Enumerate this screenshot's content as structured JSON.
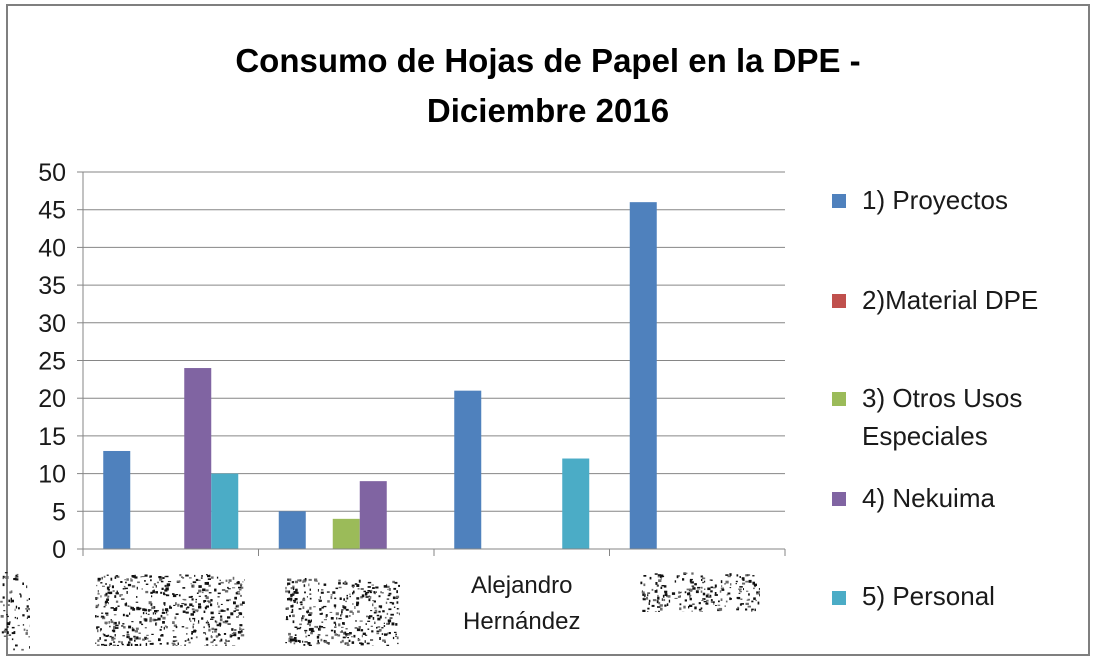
{
  "chart_data": {
    "type": "bar",
    "title": "Consumo de Hojas de Papel en la DPE - Diciembre 2016",
    "title_lines": [
      "Consumo de Hojas de Papel en la DPE -",
      "Diciembre 2016"
    ],
    "categories": [
      "",
      "",
      "Alejandro Hernández",
      ""
    ],
    "category_lines": [
      [],
      [],
      [
        "Alejandro",
        "Hernández"
      ],
      []
    ],
    "series": [
      {
        "name": "1) Proyectos",
        "color": "#4f81bd",
        "values": [
          13,
          5,
          21,
          46
        ]
      },
      {
        "name": "2)Material DPE",
        "color": "#c0504d",
        "values": [
          0,
          0,
          0,
          0
        ]
      },
      {
        "name": "3) Otros Usos Especiales",
        "color": "#9bbb59",
        "values": [
          0,
          4,
          0,
          0
        ]
      },
      {
        "name": "4) Nekuima",
        "color": "#8064a2",
        "values": [
          24,
          9,
          0,
          0
        ]
      },
      {
        "name": "5) Personal",
        "color": "#4bacc6",
        "values": [
          10,
          0,
          12,
          0
        ]
      }
    ],
    "ylim": [
      0,
      50
    ],
    "yticks": [
      0,
      5,
      10,
      15,
      20,
      25,
      30,
      35,
      40,
      45,
      50
    ],
    "grid": true,
    "legend_position": "right",
    "xlabel": "",
    "ylabel": ""
  },
  "legend": {
    "items": [
      {
        "lines": [
          "1) Proyectos"
        ]
      },
      {
        "lines": [
          "2)Material DPE"
        ]
      },
      {
        "lines": [
          "3) Otros Usos",
          "Especiales"
        ]
      },
      {
        "lines": [
          "4) Nekuima"
        ]
      },
      {
        "lines": [
          "5) Personal"
        ]
      }
    ]
  },
  "colors": {
    "gridline": "#868686",
    "axis": "#868686",
    "text": "#1a1a1a"
  }
}
